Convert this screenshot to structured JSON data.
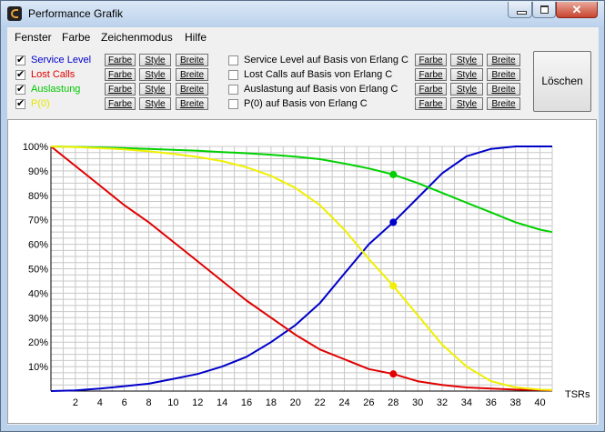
{
  "window": {
    "title": "Performance Grafik"
  },
  "menu": [
    "Fenster",
    "Farbe",
    "Zeichenmodus",
    "Hilfe"
  ],
  "buttons": {
    "farbe": "Farbe",
    "style": "Style",
    "breite": "Breite",
    "loeschen": "Löschen"
  },
  "left_series": [
    {
      "label": "Service Level",
      "checked": true,
      "color": "#0000c8"
    },
    {
      "label": "Lost Calls",
      "checked": true,
      "color": "#e00000"
    },
    {
      "label": "Auslastung",
      "checked": true,
      "color": "#00c800"
    },
    {
      "label": "P(0)",
      "checked": true,
      "color": "#e6e600"
    }
  ],
  "right_series": [
    {
      "label": "Service Level auf Basis von Erlang C",
      "checked": false
    },
    {
      "label": "Lost Calls auf Basis von Erlang C",
      "checked": false
    },
    {
      "label": "Auslastung auf Basis von Erlang C",
      "checked": false
    },
    {
      "label": "P(0) auf Basis von Erlang C",
      "checked": false
    }
  ],
  "chart_data": {
    "type": "line",
    "xlabel": "TSRs",
    "xlim": [
      0,
      41
    ],
    "ylim": [
      0,
      100
    ],
    "x_ticks": [
      2,
      4,
      6,
      8,
      10,
      12,
      14,
      16,
      18,
      20,
      22,
      24,
      26,
      28,
      30,
      32,
      34,
      36,
      38,
      40
    ],
    "x_tick_labels": [
      "2",
      "4",
      "6",
      "8",
      "10",
      "12",
      "14",
      "16",
      "18",
      "20",
      "22",
      "24",
      "26",
      "28",
      "30",
      "32",
      "34",
      "36",
      "38",
      "40"
    ],
    "y_ticks": [
      10,
      20,
      30,
      40,
      50,
      60,
      70,
      80,
      90,
      100
    ],
    "y_tick_labels": [
      "10%",
      "20%",
      "30%",
      "40%",
      "50%",
      "60%",
      "70%",
      "80%",
      "90%",
      "100%"
    ],
    "grid": true,
    "marker_x": 28,
    "x": [
      0,
      2,
      4,
      6,
      8,
      10,
      12,
      14,
      16,
      18,
      20,
      22,
      24,
      26,
      28,
      30,
      32,
      34,
      36,
      38,
      40,
      41
    ],
    "series": [
      {
        "name": "Service Level",
        "color": "#0000c8",
        "values": [
          0,
          0.3,
          1,
          2,
          3,
          5,
          7,
          10,
          14,
          20,
          27,
          36,
          48,
          60,
          69,
          79,
          89,
          96,
          99,
          100,
          100,
          100
        ],
        "marker": 69
      },
      {
        "name": "Lost Calls",
        "color": "#e00000",
        "values": [
          100,
          92,
          84,
          76,
          69,
          61,
          53,
          45,
          37,
          30,
          23,
          17,
          13,
          9,
          7,
          4,
          2.5,
          1.5,
          1,
          0.6,
          0.4,
          0.3
        ],
        "marker": 7
      },
      {
        "name": "Auslastung",
        "color": "#00d000",
        "values": [
          100,
          99.8,
          99.6,
          99.3,
          99,
          98.6,
          98.2,
          97.7,
          97.2,
          96.6,
          95.8,
          94.8,
          93,
          91,
          88.5,
          85,
          81,
          77,
          73,
          69,
          66,
          65
        ],
        "marker": 88.5
      },
      {
        "name": "P(0)",
        "color": "#f0f000",
        "values": [
          100,
          99.7,
          99.3,
          98.8,
          98,
          97,
          95.7,
          94,
          91.5,
          88,
          83,
          76,
          66,
          54,
          43,
          31,
          19,
          10,
          4,
          1.5,
          0.6,
          0.4
        ],
        "marker": 43
      }
    ]
  }
}
